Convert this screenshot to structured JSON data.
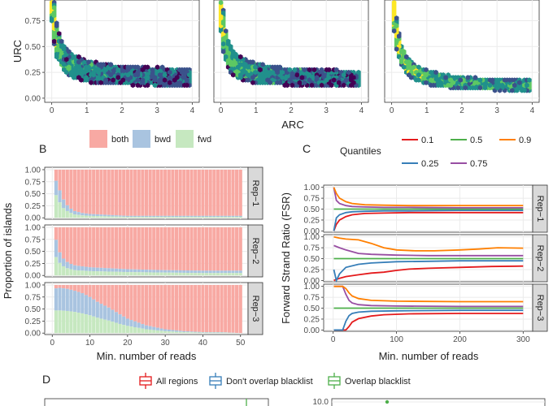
{
  "panels": {
    "b": "B",
    "c": "C",
    "d": "D"
  },
  "colors": {
    "both": "#F8A9A3",
    "bwd": "#A9C4E0",
    "fwd": "#C6E8C0",
    "q01": "#E41A1C",
    "q025": "#377EB8",
    "q05": "#4DAF4A",
    "q075": "#984EA3",
    "q09": "#FF7F00",
    "strip": "#D9D9D9",
    "hex": [
      "#440154",
      "#3B528B",
      "#21908C",
      "#5DC863",
      "#FDE725"
    ]
  },
  "chart_data": [
    {
      "type": "scatter",
      "style": "hexbin density",
      "xlabel": "ARC",
      "ylabel": "URC",
      "xticks": [
        "0",
        "1",
        "2",
        "3",
        "4"
      ],
      "yticks": [
        "0.00",
        "0.25",
        "0.50",
        "0.75"
      ],
      "xlim": [
        -0.2,
        4.2
      ],
      "ylim": [
        -0.04,
        0.95
      ],
      "facets": 3
    },
    {
      "type": "bar",
      "stacked": true,
      "xlabel": "Min. number of reads",
      "ylabel": "Proportion of islands",
      "legend": [
        "both",
        "bwd",
        "fwd"
      ],
      "legend_position": "top",
      "xticks": [
        "0",
        "10",
        "20",
        "30",
        "40",
        "50"
      ],
      "yticks": [
        "0.00",
        "0.25",
        "0.50",
        "0.75",
        "1.00"
      ],
      "xlim": [
        -2,
        52
      ],
      "ylim": [
        -0.03,
        1.05
      ],
      "facets": [
        {
          "label": "Rep−1",
          "x": [
            1,
            2,
            3,
            4,
            5,
            6,
            8,
            10,
            15,
            20,
            30,
            40,
            50
          ],
          "fwd": [
            0.47,
            0.32,
            0.2,
            0.14,
            0.1,
            0.07,
            0.05,
            0.04,
            0.03,
            0.02,
            0.02,
            0.02,
            0.02
          ],
          "bwd": [
            0.3,
            0.25,
            0.18,
            0.12,
            0.09,
            0.07,
            0.05,
            0.04,
            0.03,
            0.02,
            0.02,
            0.02,
            0.02
          ]
        },
        {
          "label": "Rep−2",
          "x": [
            1,
            2,
            3,
            4,
            5,
            6,
            8,
            10,
            15,
            20,
            30,
            40,
            50
          ],
          "fwd": [
            0.38,
            0.26,
            0.19,
            0.15,
            0.13,
            0.11,
            0.1,
            0.09,
            0.08,
            0.07,
            0.06,
            0.05,
            0.05
          ],
          "bwd": [
            0.36,
            0.22,
            0.16,
            0.13,
            0.11,
            0.1,
            0.09,
            0.08,
            0.07,
            0.06,
            0.05,
            0.05,
            0.05
          ]
        },
        {
          "label": "Rep−3",
          "x": [
            1,
            2,
            4,
            6,
            8,
            10,
            12,
            15,
            18,
            20,
            25,
            30,
            35,
            40,
            45,
            50
          ],
          "fwd": [
            0.47,
            0.47,
            0.46,
            0.44,
            0.41,
            0.37,
            0.32,
            0.26,
            0.19,
            0.15,
            0.08,
            0.04,
            0.02,
            0.01,
            0.01,
            0.0
          ],
          "bwd": [
            0.46,
            0.47,
            0.46,
            0.44,
            0.42,
            0.38,
            0.33,
            0.27,
            0.2,
            0.15,
            0.08,
            0.04,
            0.02,
            0.01,
            0.01,
            0.0
          ]
        }
      ]
    },
    {
      "type": "line",
      "xlabel": "Min. number of reads",
      "ylabel": "Forward Strand Ratio (FSR)",
      "legend_title": "Quantiles",
      "legend_position": "top",
      "xticks": [
        "0",
        "100",
        "200",
        "300"
      ],
      "yticks": [
        "0.00",
        "0.25",
        "0.50",
        "0.75",
        "1.00"
      ],
      "xlim": [
        -15,
        315
      ],
      "ylim": [
        -0.03,
        1.05
      ],
      "quantiles": [
        "0.1",
        "0.25",
        "0.5",
        "0.75",
        "0.9"
      ],
      "legend_rows": [
        [
          "0.1",
          "0.5",
          "0.9"
        ],
        [
          "0.25",
          "0.75"
        ]
      ],
      "facets": [
        {
          "label": "Rep−1",
          "series": [
            {
              "name": "0.1",
              "x": [
                1,
                5,
                10,
                20,
                30,
                50,
                80,
                120,
                200,
                300
              ],
              "y": [
                0.0,
                0.15,
                0.25,
                0.33,
                0.37,
                0.4,
                0.41,
                0.42,
                0.42,
                0.42
              ]
            },
            {
              "name": "0.25",
              "x": [
                1,
                5,
                10,
                20,
                30,
                50,
                80,
                120,
                200,
                300
              ],
              "y": [
                0.0,
                0.3,
                0.37,
                0.42,
                0.44,
                0.45,
                0.46,
                0.46,
                0.47,
                0.47
              ]
            },
            {
              "name": "0.5",
              "x": [
                1,
                300
              ],
              "y": [
                0.5,
                0.5
              ]
            },
            {
              "name": "0.75",
              "x": [
                1,
                5,
                10,
                20,
                30,
                50,
                80,
                120,
                200,
                300
              ],
              "y": [
                1.0,
                0.7,
                0.63,
                0.58,
                0.56,
                0.55,
                0.54,
                0.54,
                0.53,
                0.53
              ]
            },
            {
              "name": "0.9",
              "x": [
                1,
                5,
                10,
                20,
                30,
                50,
                80,
                120,
                200,
                300
              ],
              "y": [
                1.0,
                0.86,
                0.75,
                0.67,
                0.63,
                0.6,
                0.59,
                0.58,
                0.58,
                0.58
              ]
            }
          ]
        },
        {
          "label": "Rep−2",
          "series": [
            {
              "name": "0.1",
              "x": [
                1,
                10,
                20,
                40,
                60,
                80,
                100,
                120,
                150,
                200,
                250,
                300
              ],
              "y": [
                0.0,
                0.05,
                0.09,
                0.13,
                0.17,
                0.19,
                0.23,
                0.26,
                0.28,
                0.3,
                0.32,
                0.33
              ]
            },
            {
              "name": "0.25",
              "x": [
                1,
                5,
                10,
                20,
                40,
                60,
                100,
                150,
                200,
                250,
                300
              ],
              "y": [
                0.25,
                0.0,
                0.15,
                0.3,
                0.37,
                0.4,
                0.43,
                0.44,
                0.45,
                0.45,
                0.45
              ]
            },
            {
              "name": "0.5",
              "x": [
                1,
                300
              ],
              "y": [
                0.5,
                0.5
              ]
            },
            {
              "name": "0.75",
              "x": [
                1,
                10,
                20,
                40,
                60,
                100,
                150,
                200,
                250,
                300
              ],
              "y": [
                0.8,
                0.75,
                0.7,
                0.62,
                0.6,
                0.58,
                0.57,
                0.57,
                0.57,
                0.57
              ]
            },
            {
              "name": "0.9",
              "x": [
                1,
                10,
                20,
                40,
                60,
                80,
                100,
                130,
                160,
                200,
                230,
                260,
                300
              ],
              "y": [
                1.0,
                0.97,
                0.95,
                0.93,
                0.85,
                0.75,
                0.7,
                0.68,
                0.68,
                0.7,
                0.72,
                0.75,
                0.74
              ]
            }
          ]
        },
        {
          "label": "Rep−3",
          "series": [
            {
              "name": "0.1",
              "x": [
                1,
                20,
                25,
                30,
                40,
                60,
                80,
                120,
                200,
                300
              ],
              "y": [
                0.0,
                0.0,
                0.08,
                0.18,
                0.26,
                0.32,
                0.35,
                0.37,
                0.38,
                0.38
              ]
            },
            {
              "name": "0.25",
              "x": [
                1,
                15,
                20,
                25,
                30,
                40,
                60,
                100,
                200,
                300
              ],
              "y": [
                0.0,
                0.0,
                0.2,
                0.33,
                0.38,
                0.41,
                0.43,
                0.44,
                0.45,
                0.45
              ]
            },
            {
              "name": "0.5",
              "x": [
                1,
                300
              ],
              "y": [
                0.5,
                0.5
              ]
            },
            {
              "name": "0.75",
              "x": [
                1,
                15,
                20,
                25,
                30,
                40,
                60,
                100,
                200,
                300
              ],
              "y": [
                1.0,
                1.0,
                0.82,
                0.68,
                0.62,
                0.58,
                0.56,
                0.55,
                0.54,
                0.54
              ]
            },
            {
              "name": "0.9",
              "x": [
                1,
                10,
                15,
                20,
                25,
                30,
                40,
                60,
                100,
                200,
                300
              ],
              "y": [
                1.0,
                1.0,
                1.0,
                0.95,
                0.85,
                0.78,
                0.72,
                0.68,
                0.66,
                0.65,
                0.65
              ]
            }
          ]
        }
      ]
    },
    {
      "type": "line",
      "legend": [
        "All regions",
        "Don't overlap blacklist",
        "Overlap blacklist"
      ],
      "legend_colors": [
        "#E41A1C",
        "#377EB8",
        "#4DAF4A"
      ],
      "legend_position": "top",
      "visible_ytick": "10.0"
    }
  ]
}
